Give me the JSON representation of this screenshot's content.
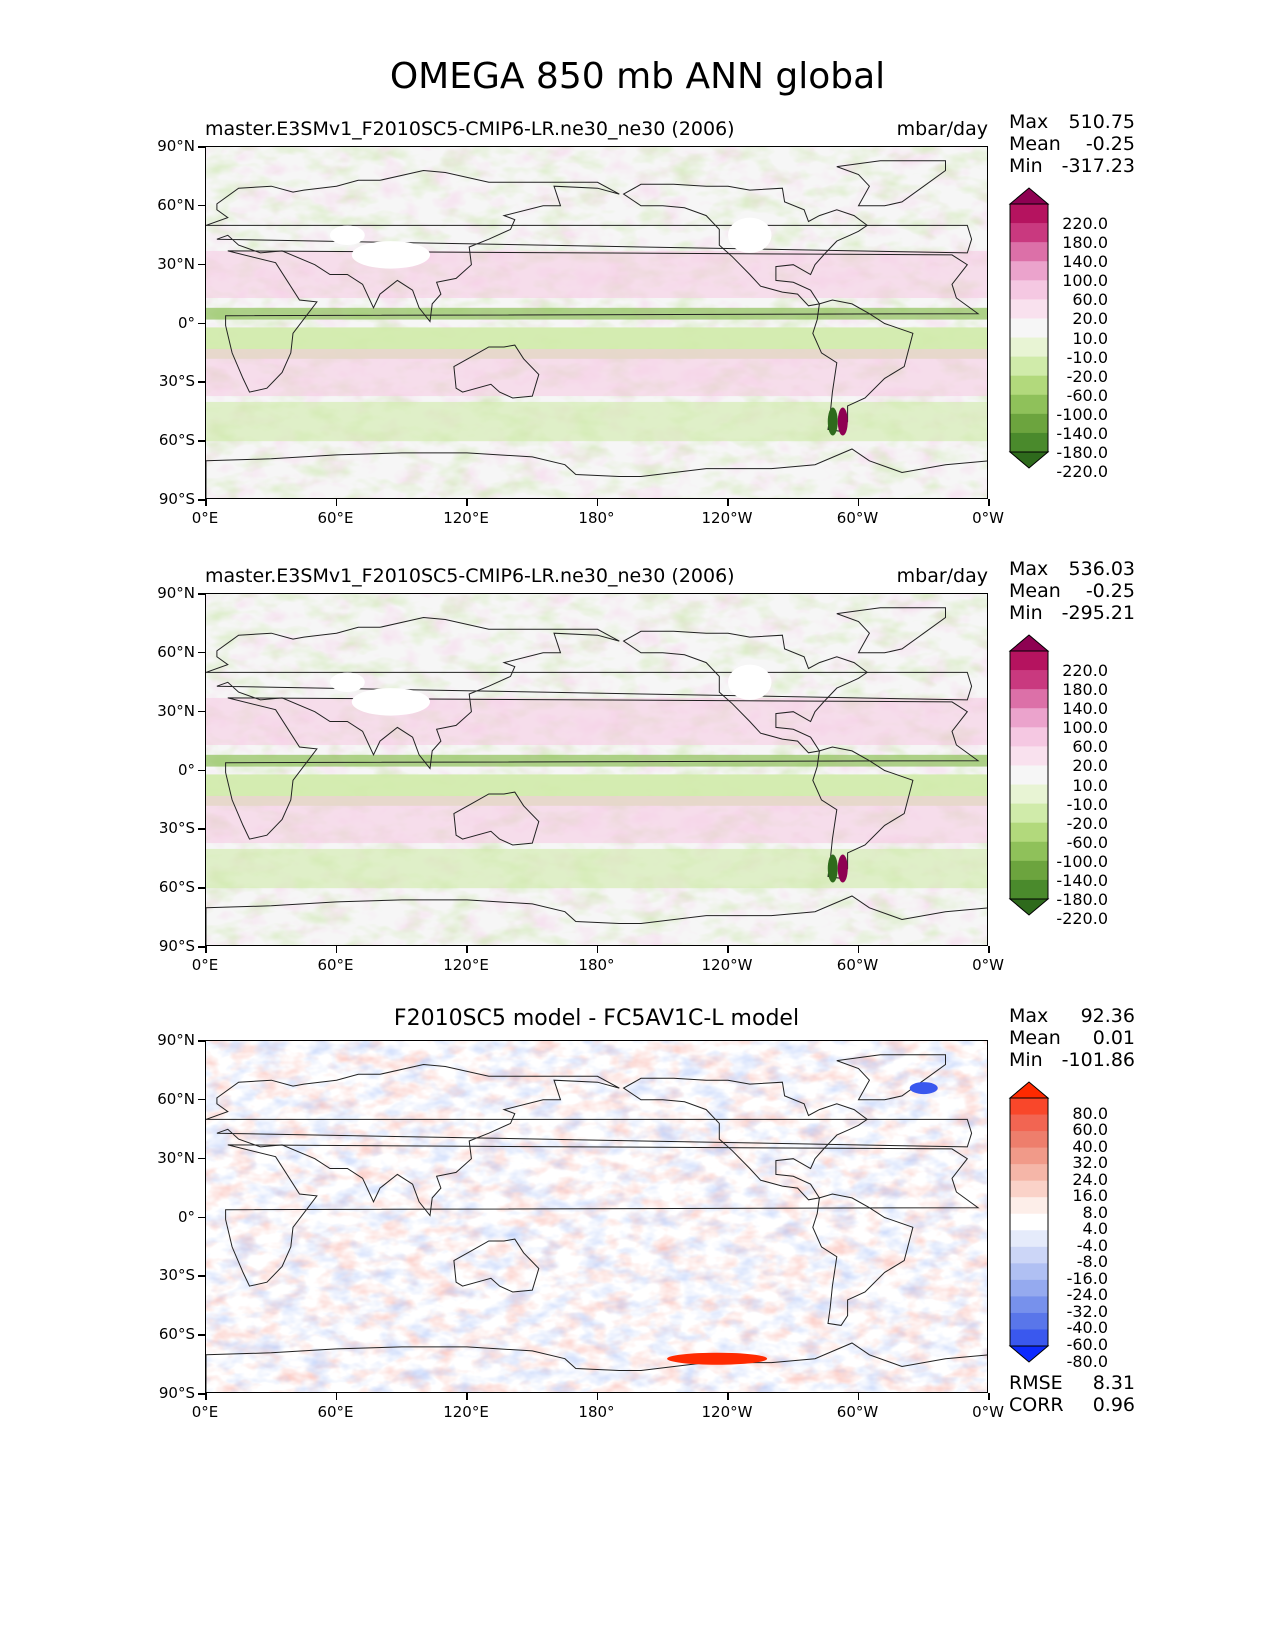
{
  "figure": {
    "title": "OMEGA 850 mb ANN global"
  },
  "axes": {
    "lat_ticks": [
      "90°N",
      "60°N",
      "30°N",
      "0°",
      "30°S",
      "60°S",
      "90°S"
    ],
    "lon_ticks": [
      "0°E",
      "60°E",
      "120°E",
      "180°",
      "120°W",
      "60°W",
      "0°W"
    ]
  },
  "panels": [
    {
      "title": "master.E3SMv1_F2010SC5-CMIP6-LR.ne30_ne30 (2006)",
      "units": "mbar/day",
      "stats": {
        "max_label": "Max",
        "max": "510.75",
        "mean_label": "Mean",
        "mean": "-0.25",
        "min_label": "Min",
        "min": "-317.23"
      }
    },
    {
      "title": "master.E3SMv1_F2010SC5-CMIP6-LR.ne30_ne30 (2006)",
      "units": "mbar/day",
      "stats": {
        "max_label": "Max",
        "max": "536.03",
        "mean_label": "Mean",
        "mean": "-0.25",
        "min_label": "Min",
        "min": "-295.21"
      }
    },
    {
      "title": "F2010SC5 model - FC5AV1C-L model",
      "units": "",
      "stats": {
        "max_label": "Max",
        "max": "92.36",
        "mean_label": "Mean",
        "mean": "0.01",
        "min_label": "Min",
        "min": "-101.86"
      },
      "extra": {
        "rmse_label": "RMSE",
        "rmse": "8.31",
        "corr_label": "CORR",
        "corr": "0.96"
      }
    }
  ],
  "colorbars": {
    "model": {
      "levels": [
        "220.0",
        "180.0",
        "140.0",
        "100.0",
        "60.0",
        "20.0",
        "10.0",
        "-10.0",
        "-20.0",
        "-60.0",
        "-100.0",
        "-140.0",
        "-180.0",
        "-220.0"
      ],
      "colors": [
        "#8e0152",
        "#b5135f",
        "#c9397f",
        "#dc70a8",
        "#eba3cc",
        "#f5c8e2",
        "#f9e1ee",
        "#f6f6f6",
        "#e8f4d4",
        "#d0ebaa",
        "#b2d97c",
        "#8fc15a",
        "#6ca43e",
        "#4a8a2c",
        "#2e6a1c"
      ]
    },
    "diff": {
      "levels": [
        "80.0",
        "60.0",
        "40.0",
        "32.0",
        "24.0",
        "16.0",
        "8.0",
        "4.0",
        "-4.0",
        "-8.0",
        "-16.0",
        "-24.0",
        "-32.0",
        "-40.0",
        "-60.0",
        "-80.0"
      ],
      "colors": [
        "#ff2a00",
        "#f9472a",
        "#f26552",
        "#ee7e6c",
        "#f19a89",
        "#f5b6a8",
        "#fad2c8",
        "#fdeee9",
        "#ffffff",
        "#e5ebfb",
        "#ccd6f7",
        "#b0c0f3",
        "#95aaef",
        "#7791ec",
        "#5976ea",
        "#3a58ee",
        "#0c2aff"
      ]
    }
  },
  "chart_data": [
    {
      "type": "heatmap",
      "title": "master.E3SMv1_F2010SC5-CMIP6-LR.ne30_ne30 (2006)",
      "variable": "OMEGA 850 mb",
      "units": "mbar/day",
      "xlabel": "",
      "ylabel": "",
      "xlim": [
        0,
        360
      ],
      "ylim": [
        -90,
        90
      ],
      "max": 510.75,
      "mean": -0.25,
      "min": -317.23
    },
    {
      "type": "heatmap",
      "title": "master.E3SMv1_F2010SC5-CMIP6-LR.ne30_ne30 (2006)",
      "variable": "OMEGA 850 mb",
      "units": "mbar/day",
      "xlim": [
        0,
        360
      ],
      "ylim": [
        -90,
        90
      ],
      "max": 536.03,
      "mean": -0.25,
      "min": -295.21
    },
    {
      "type": "heatmap",
      "title": "F2010SC5 model - FC5AV1C-L model",
      "xlim": [
        0,
        360
      ],
      "ylim": [
        -90,
        90
      ],
      "max": 92.36,
      "mean": 0.01,
      "min": -101.86,
      "rmse": 8.31,
      "corr": 0.96
    }
  ]
}
